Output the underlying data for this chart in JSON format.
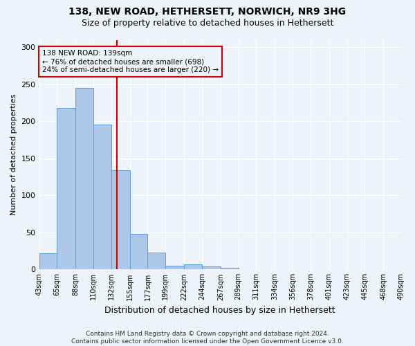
{
  "title1": "138, NEW ROAD, HETHERSETT, NORWICH, NR9 3HG",
  "title2": "Size of property relative to detached houses in Hethersett",
  "xlabel": "Distribution of detached houses by size in Hethersett",
  "ylabel": "Number of detached properties",
  "footnote": "Contains HM Land Registry data © Crown copyright and database right 2024.\nContains public sector information licensed under the Open Government Licence v3.0.",
  "bin_edges": [
    43,
    65,
    88,
    110,
    132,
    155,
    177,
    199,
    222,
    244,
    267,
    289,
    311,
    334,
    356,
    378,
    401,
    423,
    445,
    468,
    490
  ],
  "bin_vals": [
    22,
    218,
    245,
    196,
    134,
    48,
    23,
    5,
    7,
    4,
    2,
    0,
    0,
    0,
    0,
    0,
    0,
    0,
    0,
    0
  ],
  "tick_labels": [
    "43sqm",
    "65sqm",
    "88sqm",
    "110sqm",
    "132sqm",
    "155sqm",
    "177sqm",
    "199sqm",
    "222sqm",
    "244sqm",
    "267sqm",
    "289sqm",
    "311sqm",
    "334sqm",
    "356sqm",
    "378sqm",
    "401sqm",
    "423sqm",
    "445sqm",
    "468sqm",
    "490sqm"
  ],
  "bar_color": "#aec6e8",
  "bar_edge_color": "#5a9fd4",
  "vline_x": 139,
  "vline_color": "#cc0000",
  "annotation_text": "138 NEW ROAD: 139sqm\n← 76% of detached houses are smaller (698)\n24% of semi-detached houses are larger (220) →",
  "ylim": [
    0,
    310
  ],
  "yticks": [
    0,
    50,
    100,
    150,
    200,
    250,
    300
  ],
  "bg_color": "#eef2f9",
  "grid_color": "#ffffff",
  "title1_fontsize": 10,
  "title2_fontsize": 9,
  "ylabel_fontsize": 8,
  "xlabel_fontsize": 9,
  "tick_fontsize": 7,
  "footnote_fontsize": 6.5
}
